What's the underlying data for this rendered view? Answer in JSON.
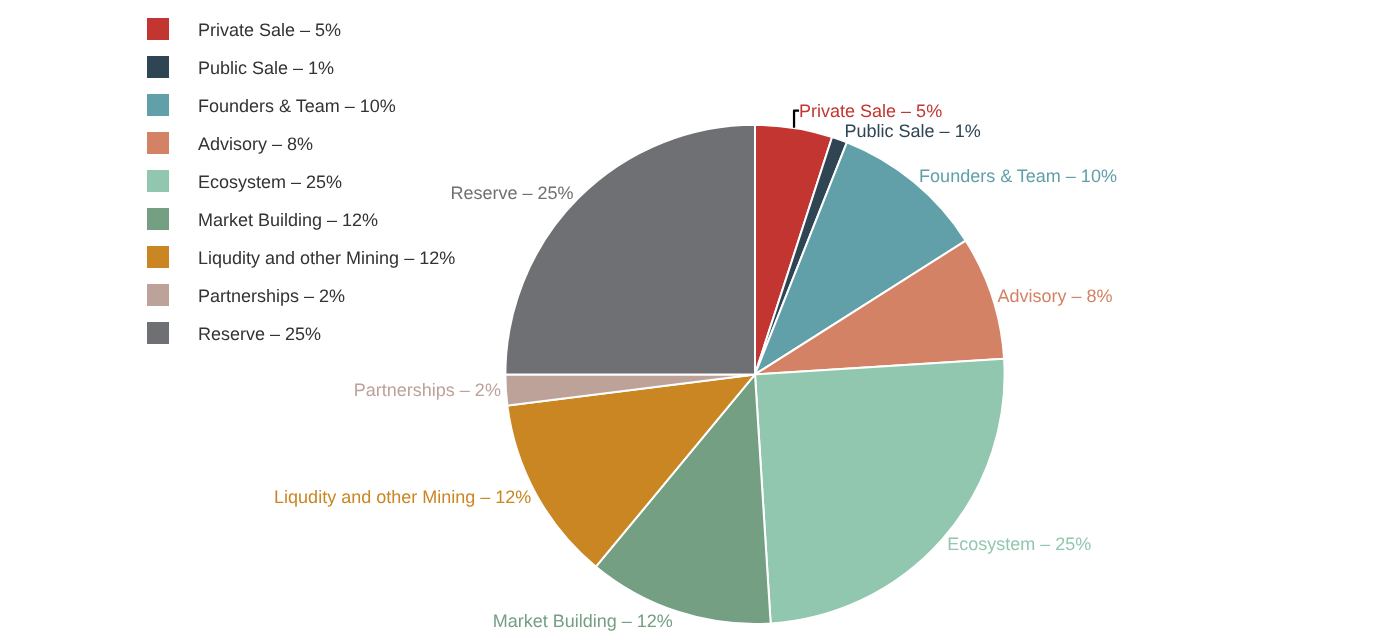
{
  "chart_data": {
    "type": "pie",
    "categories": [
      "Private Sale – 5%",
      "Public Sale – 1%",
      "Founders & Team – 10%",
      "Advisory – 8%",
      "Ecosystem – 25%",
      "Market Building – 12%",
      "Liqudity and other Mining – 12%",
      "Partnerships – 2%",
      "Reserve – 25%"
    ],
    "values": [
      5,
      1,
      10,
      8,
      25,
      12,
      12,
      2,
      25
    ],
    "colors": [
      "#c23531",
      "#2f4554",
      "#61a0a8",
      "#d48265",
      "#91c7ae",
      "#749f83",
      "#ca8622",
      "#bda29a",
      "#6e7074"
    ],
    "legend": "top left"
  }
}
